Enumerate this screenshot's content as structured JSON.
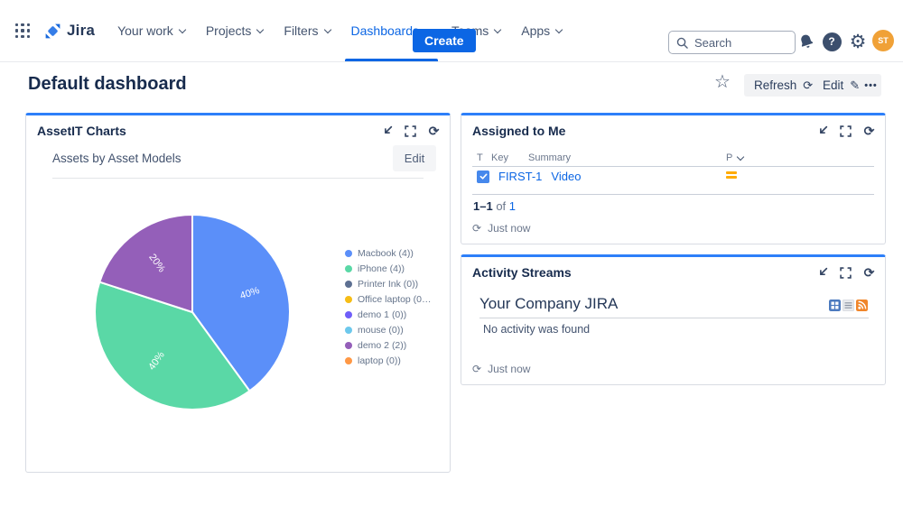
{
  "nav": {
    "logo_text": "Jira",
    "items": [
      {
        "label": "Your work",
        "active": false
      },
      {
        "label": "Projects",
        "active": false
      },
      {
        "label": "Filters",
        "active": false
      },
      {
        "label": "Dashboards",
        "active": true
      },
      {
        "label": "Teams",
        "active": false
      },
      {
        "label": "Apps",
        "active": false
      }
    ],
    "create_label": "Create",
    "search_placeholder": "Search",
    "avatar_initials": "ST"
  },
  "header": {
    "title": "Default dashboard",
    "refresh_label": "Refresh",
    "edit_label": "Edit"
  },
  "icons": {
    "refresh": "⟳",
    "pencil": "✎",
    "star": "☆",
    "more": "•••",
    "gear": "⚙",
    "help": "?",
    "accent_blue": "#2D7FF9"
  },
  "panels": {
    "charts": {
      "title": "AssetIT Charts",
      "subtitle": "Assets by Asset Models",
      "edit_label": "Edit",
      "legend": [
        {
          "label": "Macbook (4))",
          "color": "#5B8FF9"
        },
        {
          "label": "iPhone (4))",
          "color": "#5AD8A6"
        },
        {
          "label": "Printer Ink (0))",
          "color": "#5D7092"
        },
        {
          "label": "Office laptop (0…",
          "color": "#F6BD16"
        },
        {
          "label": "demo 1 (0))",
          "color": "#6F5EF9"
        },
        {
          "label": "mouse (0))",
          "color": "#6DC8EC"
        },
        {
          "label": "demo 2 (2))",
          "color": "#945FB9"
        },
        {
          "label": "laptop (0))",
          "color": "#FF9845"
        }
      ]
    },
    "assigned": {
      "title": "Assigned to Me",
      "columns": {
        "type": "T",
        "key": "Key",
        "summary": "Summary",
        "priority": "P"
      },
      "rows": [
        {
          "key": "FIRST-1",
          "summary": "Video",
          "type": "task",
          "priority": "medium"
        }
      ],
      "pagination": {
        "range": "1–1",
        "of": "of",
        "total": "1"
      },
      "refreshed": "Just now"
    },
    "activity": {
      "title": "Activity Streams",
      "stream_title": "Your Company JIRA",
      "empty_message": "No activity was found",
      "refreshed": "Just now"
    }
  },
  "chart_data": {
    "type": "pie",
    "title": "Assets by Asset Models",
    "legend_position": "right",
    "slices": [
      {
        "label": "Macbook (4)",
        "value": 40,
        "display": "40%",
        "color": "#5B8FF9"
      },
      {
        "label": "iPhone (4)",
        "value": 40,
        "display": "40%",
        "color": "#5AD8A6"
      },
      {
        "label": "demo 2 (2)",
        "value": 20,
        "display": "20%",
        "color": "#945FB9"
      }
    ]
  }
}
